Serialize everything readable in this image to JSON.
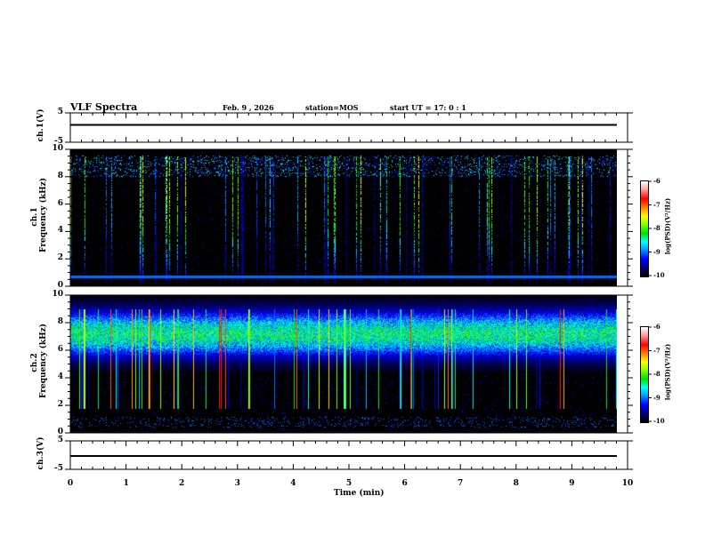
{
  "header": {
    "title": "VLF Spectra",
    "date": "Feb. 9 , 2026",
    "station": "station=MOS",
    "start": "start  UT =   17: 0  : 1"
  },
  "chart_data": {
    "type": "heatmap",
    "xlabel": "Time (min)",
    "xlim": [
      0,
      10
    ],
    "xticks": [
      "0",
      "1",
      "2",
      "3",
      "4",
      "5",
      "6",
      "7",
      "8",
      "9",
      "10"
    ],
    "panels": [
      {
        "name": "ch1-waveform",
        "ylabel": "ch.1(V)",
        "ylim": [
          -5,
          5
        ],
        "yticks": [
          "5",
          "-5"
        ],
        "value": 0
      },
      {
        "name": "ch1-spectrogram",
        "ylabel": "ch.1\nFrequency (kHz)",
        "ylabel_lines": [
          "ch.1",
          "Frequency (kHz)"
        ],
        "ylim": [
          0,
          10
        ],
        "yticks": [
          "0",
          "2",
          "4",
          "6",
          "8",
          "10"
        ],
        "colorbar": {
          "label": "log(PSD)(V²/Hz)",
          "range": [
            -10,
            -6
          ],
          "ticks": [
            "-6",
            "-7",
            "-8",
            "-9",
            "-10"
          ]
        },
        "background_level": -10,
        "narrowband_kHz": 0.7
      },
      {
        "name": "ch2-spectrogram",
        "ylabel_lines": [
          "ch.2",
          "Frequency (kHz)"
        ],
        "ylim": [
          0,
          10
        ],
        "yticks": [
          "0",
          "2",
          "4",
          "6",
          "8",
          "10"
        ],
        "colorbar": {
          "label": "log(PSD)(V²/Hz)",
          "range": [
            -10,
            -6
          ],
          "ticks": [
            "-6",
            "-7",
            "-8",
            "-9",
            "-10"
          ]
        },
        "band_kHz": [
          5,
          9.5
        ]
      },
      {
        "name": "ch3-waveform",
        "ylabel": "ch.3(V)",
        "ylim": [
          -5,
          5
        ],
        "yticks": [
          "5",
          "-5"
        ],
        "value": 0
      }
    ],
    "colormap": [
      "#000000",
      "#00007a",
      "#0000ff",
      "#0090ff",
      "#00ffff",
      "#00e000",
      "#80ff00",
      "#ffff00",
      "#ff8000",
      "#ff0000",
      "#ff9090",
      "#ffffff"
    ]
  }
}
